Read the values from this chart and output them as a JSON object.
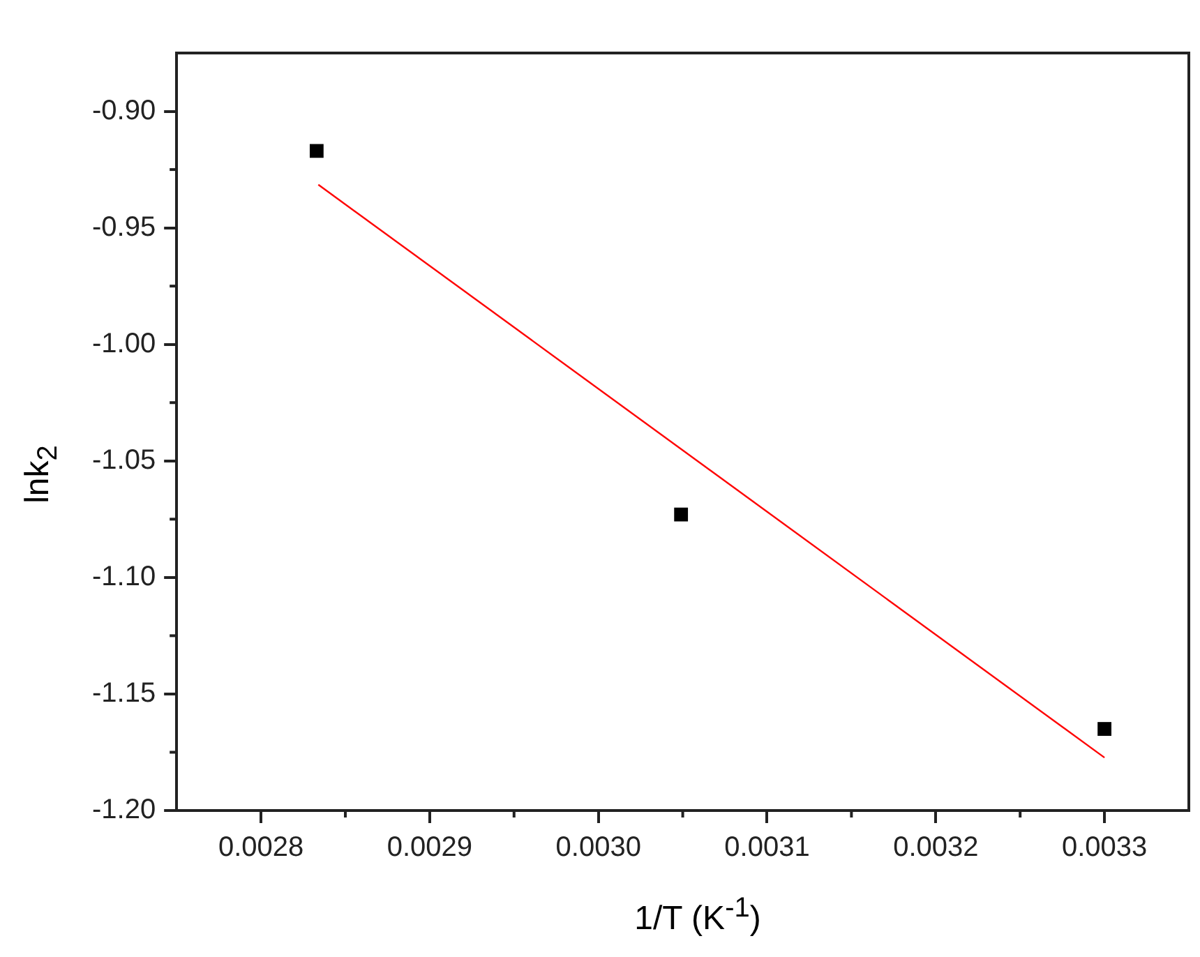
{
  "chart_data": {
    "type": "scatter",
    "xlabel": "1/T (K$^{-1}$)",
    "ylabel": "lnk$_{2}$",
    "x": [
      0.002833,
      0.003049,
      0.0033
    ],
    "series": [
      {
        "type": "scatter",
        "color": "#000000",
        "marker": "square",
        "values": [
          -0.917,
          -1.073,
          -1.165
        ]
      },
      {
        "type": "line",
        "color": "#ff0000",
        "marker": "none",
        "x": [
          0.002834,
          0.0033
        ],
        "values": [
          -0.9315,
          -1.1773
        ]
      }
    ],
    "xlim": [
      0.00275,
      0.00335
    ],
    "ylim": [
      -1.2,
      -0.875
    ],
    "xticks": [
      {
        "value": 0.0028,
        "label": "0.0028"
      },
      {
        "value": 0.0029,
        "label": "0.0029"
      },
      {
        "value": 0.003,
        "label": "0.0030"
      },
      {
        "value": 0.0031,
        "label": "0.0031"
      },
      {
        "value": 0.0032,
        "label": "0.0032"
      },
      {
        "value": 0.0033,
        "label": "0.0033"
      }
    ],
    "yticks": [
      {
        "value": -1.2,
        "label": "-1.20"
      },
      {
        "value": -1.15,
        "label": "-1.15"
      },
      {
        "value": -1.1,
        "label": "-1.10"
      },
      {
        "value": -1.05,
        "label": "-1.05"
      },
      {
        "value": -1.0,
        "label": "-1.00"
      },
      {
        "value": -0.95,
        "label": "-0.95"
      },
      {
        "value": -0.9,
        "label": "-0.90"
      }
    ],
    "grid": false,
    "legend": false
  }
}
